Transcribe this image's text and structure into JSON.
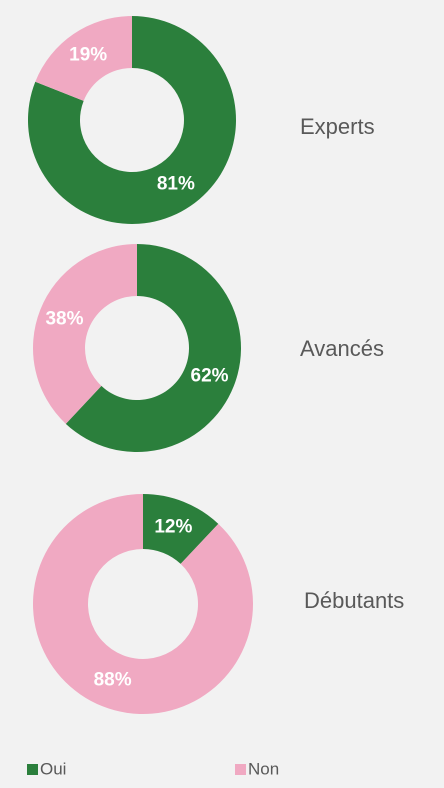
{
  "chart_data": [
    {
      "type": "donut",
      "title": "Experts",
      "values": [
        81,
        19
      ],
      "value_labels": [
        "81%",
        "19%"
      ]
    },
    {
      "type": "donut",
      "title": "Avancés",
      "values": [
        62,
        38
      ],
      "value_labels": [
        "62%",
        "38%"
      ]
    },
    {
      "type": "donut",
      "title": "Débutants",
      "values": [
        12,
        88
      ],
      "value_labels": [
        "12%",
        "88%"
      ]
    }
  ],
  "legend": {
    "labels": [
      "Oui",
      "Non"
    ],
    "colors": [
      "#2b7f3c",
      "#f0a9c2"
    ]
  }
}
